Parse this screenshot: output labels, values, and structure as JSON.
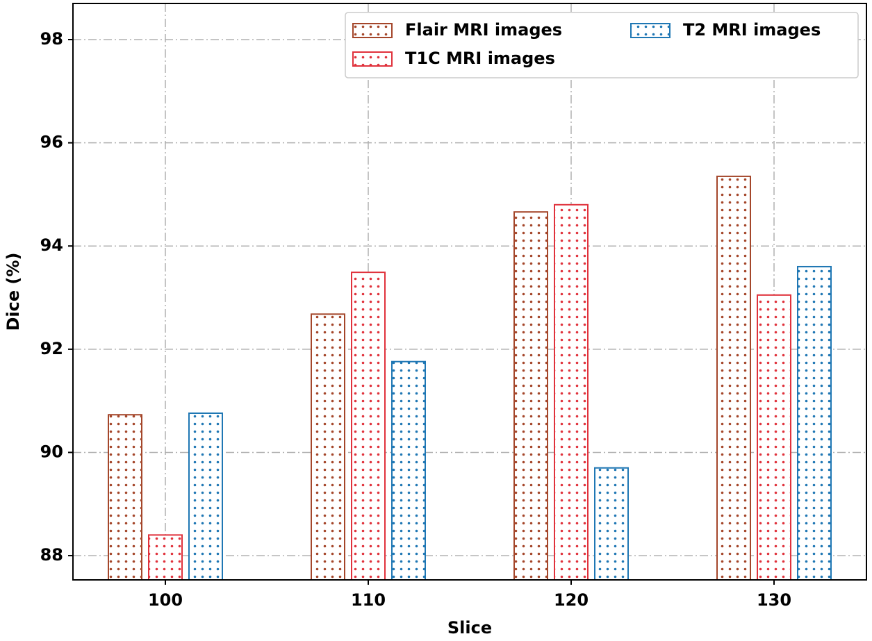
{
  "chart_data": {
    "type": "bar",
    "xlabel": "Slice",
    "ylabel": "Dice (%)",
    "categories": [
      "100",
      "110",
      "120",
      "130"
    ],
    "series": [
      {
        "name": "Flair MRI images",
        "color": "#a4462a",
        "values": [
          90.73,
          92.68,
          94.66,
          95.35
        ]
      },
      {
        "name": "T1C MRI images",
        "color": "#e0323c",
        "values": [
          88.4,
          93.49,
          94.8,
          93.05
        ]
      },
      {
        "name": "T2 MRI images",
        "color": "#1f77b4",
        "values": [
          90.76,
          91.76,
          89.7,
          93.6
        ]
      }
    ],
    "ylim": [
      87.53,
      98.7
    ],
    "yticks": [
      88,
      90,
      92,
      94,
      96,
      98
    ],
    "grid": true,
    "legend": "upper right"
  }
}
